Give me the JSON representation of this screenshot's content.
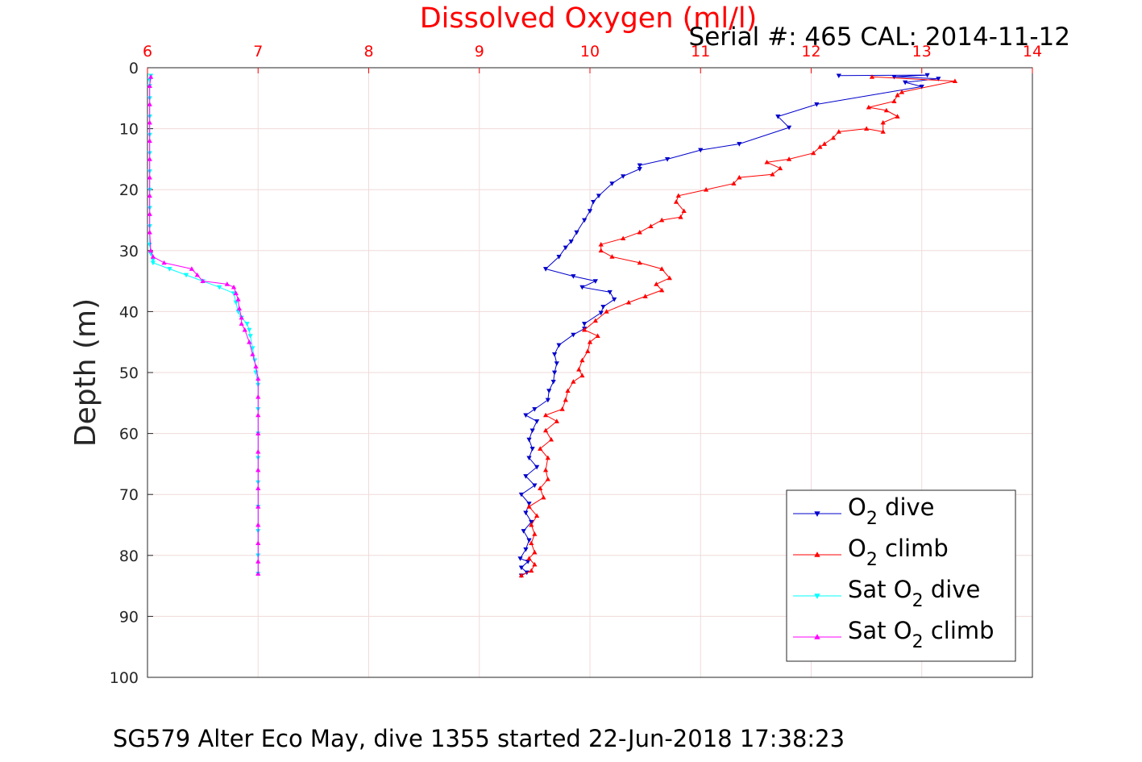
{
  "chart_data": {
    "type": "line",
    "title": "Dissolved Oxygen (ml/l)",
    "subtitle": "Serial #: 465  CAL: 2014-11-12",
    "footer": "SG579 Alter Eco May, dive 1355 started 22-Jun-2018 17:38:23",
    "xlabel": "",
    "ylabel": "Depth (m)",
    "xlim": [
      6,
      14
    ],
    "ylim": [
      0,
      100
    ],
    "y_reversed": true,
    "x_axis_position": "top",
    "grid": true,
    "legend_position": "bottom-right",
    "x_ticks": [
      6,
      7,
      8,
      9,
      10,
      11,
      12,
      13,
      14
    ],
    "y_ticks": [
      0,
      10,
      20,
      30,
      40,
      50,
      60,
      70,
      80,
      90,
      100
    ],
    "colors": {
      "title": "#ff0000",
      "x_ticks": "#ff0000",
      "grid": "#f0dada"
    },
    "series": [
      {
        "name_parts": [
          "O",
          "2",
          " dive"
        ],
        "color": "#0000cc",
        "marker": "triangle-down",
        "points": [
          [
            12.25,
            1.3
          ],
          [
            13.05,
            1.2
          ],
          [
            12.75,
            1.5
          ],
          [
            13.15,
            1.8
          ],
          [
            12.85,
            2.4
          ],
          [
            13.0,
            3.1
          ],
          [
            12.05,
            6.0
          ],
          [
            11.7,
            8.0
          ],
          [
            11.8,
            9.8
          ],
          [
            11.35,
            12.5
          ],
          [
            11.0,
            13.5
          ],
          [
            10.7,
            15.0
          ],
          [
            10.45,
            16.0
          ],
          [
            10.45,
            16.6
          ],
          [
            10.3,
            17.8
          ],
          [
            10.2,
            19.0
          ],
          [
            10.08,
            21.0
          ],
          [
            10.03,
            22.0
          ],
          [
            10.0,
            23.5
          ],
          [
            9.95,
            25.0
          ],
          [
            9.88,
            27.0
          ],
          [
            9.83,
            28.5
          ],
          [
            9.78,
            29.5
          ],
          [
            9.72,
            31.0
          ],
          [
            9.6,
            33.0
          ],
          [
            9.85,
            34.2
          ],
          [
            10.05,
            35.0
          ],
          [
            9.93,
            36.0
          ],
          [
            10.18,
            36.8
          ],
          [
            10.22,
            38.0
          ],
          [
            10.12,
            39.2
          ],
          [
            10.1,
            40.2
          ],
          [
            9.95,
            42.0
          ],
          [
            9.95,
            42.8
          ],
          [
            9.85,
            43.8
          ],
          [
            9.72,
            45.5
          ],
          [
            9.68,
            47.0
          ],
          [
            9.7,
            48.5
          ],
          [
            9.68,
            50.0
          ],
          [
            9.67,
            51.5
          ],
          [
            9.63,
            53.0
          ],
          [
            9.62,
            54.5
          ],
          [
            9.5,
            56.0
          ],
          [
            9.42,
            57.0
          ],
          [
            9.52,
            58.0
          ],
          [
            9.48,
            59.5
          ],
          [
            9.45,
            61.0
          ],
          [
            9.48,
            62.5
          ],
          [
            9.45,
            64.0
          ],
          [
            9.52,
            65.5
          ],
          [
            9.42,
            67.0
          ],
          [
            9.5,
            68.5
          ],
          [
            9.38,
            70.0
          ],
          [
            9.45,
            71.5
          ],
          [
            9.42,
            73.0
          ],
          [
            9.47,
            74.5
          ],
          [
            9.4,
            76.0
          ],
          [
            9.45,
            77.5
          ],
          [
            9.42,
            79.0
          ],
          [
            9.37,
            80.5
          ],
          [
            9.44,
            81.0
          ],
          [
            9.38,
            82.0
          ],
          [
            9.43,
            82.8
          ],
          [
            9.38,
            83.3
          ]
        ]
      },
      {
        "name_parts": [
          "O",
          "2",
          " climb"
        ],
        "color": "#ff0000",
        "marker": "triangle-up",
        "points": [
          [
            9.38,
            83.3
          ],
          [
            9.47,
            82.5
          ],
          [
            9.5,
            81.5
          ],
          [
            9.45,
            80.5
          ],
          [
            9.5,
            79.5
          ],
          [
            9.47,
            78.0
          ],
          [
            9.5,
            76.5
          ],
          [
            9.47,
            75.0
          ],
          [
            9.52,
            73.5
          ],
          [
            9.45,
            72.0
          ],
          [
            9.58,
            70.5
          ],
          [
            9.55,
            69.0
          ],
          [
            9.62,
            67.5
          ],
          [
            9.6,
            66.0
          ],
          [
            9.62,
            64.0
          ],
          [
            9.55,
            62.5
          ],
          [
            9.65,
            61.0
          ],
          [
            9.6,
            59.5
          ],
          [
            9.7,
            58.0
          ],
          [
            9.6,
            57.0
          ],
          [
            9.75,
            56.0
          ],
          [
            9.78,
            54.5
          ],
          [
            9.8,
            53.0
          ],
          [
            9.85,
            51.5
          ],
          [
            9.93,
            50.5
          ],
          [
            9.9,
            49.5
          ],
          [
            9.93,
            48.0
          ],
          [
            9.98,
            46.5
          ],
          [
            10.0,
            45.0
          ],
          [
            10.07,
            44.0
          ],
          [
            9.95,
            43.0
          ],
          [
            10.05,
            41.5
          ],
          [
            10.15,
            40.0
          ],
          [
            10.35,
            38.5
          ],
          [
            10.5,
            37.5
          ],
          [
            10.65,
            36.5
          ],
          [
            10.6,
            35.5
          ],
          [
            10.72,
            34.5
          ],
          [
            10.65,
            33.0
          ],
          [
            10.45,
            32.0
          ],
          [
            10.2,
            31.0
          ],
          [
            10.1,
            30.0
          ],
          [
            10.1,
            29.0
          ],
          [
            10.3,
            28.0
          ],
          [
            10.45,
            27.0
          ],
          [
            10.55,
            26.0
          ],
          [
            10.65,
            25.0
          ],
          [
            10.82,
            24.5
          ],
          [
            10.85,
            23.5
          ],
          [
            10.78,
            22.0
          ],
          [
            10.8,
            21.0
          ],
          [
            11.05,
            20.0
          ],
          [
            11.3,
            19.0
          ],
          [
            11.35,
            18.0
          ],
          [
            11.65,
            17.5
          ],
          [
            11.72,
            16.5
          ],
          [
            11.6,
            15.5
          ],
          [
            11.8,
            15.0
          ],
          [
            12.02,
            14.0
          ],
          [
            12.08,
            13.0
          ],
          [
            12.12,
            12.5
          ],
          [
            12.2,
            11.5
          ],
          [
            12.25,
            10.5
          ],
          [
            12.5,
            10.0
          ],
          [
            12.65,
            10.5
          ],
          [
            12.65,
            9.0
          ],
          [
            12.78,
            8.0
          ],
          [
            12.68,
            7.0
          ],
          [
            12.52,
            6.5
          ],
          [
            12.75,
            5.5
          ],
          [
            12.78,
            4.5
          ],
          [
            12.82,
            4.0
          ],
          [
            13.3,
            2.2
          ],
          [
            12.55,
            1.5
          ]
        ]
      },
      {
        "name_parts": [
          "Sat O",
          "2",
          " dive"
        ],
        "color": "#00ffff",
        "marker": "triangle-down",
        "points": [
          [
            6.03,
            1.3
          ],
          [
            6.02,
            2.0
          ],
          [
            6.02,
            3.0
          ],
          [
            6.02,
            5.0
          ],
          [
            6.02,
            8.0
          ],
          [
            6.02,
            11.0
          ],
          [
            6.02,
            14.0
          ],
          [
            6.02,
            17.0
          ],
          [
            6.02,
            20.0
          ],
          [
            6.02,
            23.0
          ],
          [
            6.02,
            26.0
          ],
          [
            6.02,
            29.0
          ],
          [
            6.03,
            30.5
          ],
          [
            6.05,
            31.5
          ],
          [
            6.05,
            32.0
          ],
          [
            6.2,
            33.0
          ],
          [
            6.35,
            34.0
          ],
          [
            6.5,
            35.0
          ],
          [
            6.65,
            36.0
          ],
          [
            6.78,
            37.0
          ],
          [
            6.8,
            38.5
          ],
          [
            6.82,
            40.0
          ],
          [
            6.85,
            41.0
          ],
          [
            6.9,
            42.0
          ],
          [
            6.92,
            43.0
          ],
          [
            6.93,
            44.0
          ],
          [
            6.95,
            46.0
          ],
          [
            6.97,
            48.0
          ],
          [
            6.98,
            50.0
          ],
          [
            7.0,
            52.0
          ],
          [
            7.0,
            56.0
          ],
          [
            7.0,
            60.0
          ],
          [
            7.0,
            64.0
          ],
          [
            7.0,
            68.0
          ],
          [
            7.0,
            72.0
          ],
          [
            7.0,
            76.0
          ],
          [
            7.0,
            80.0
          ],
          [
            7.0,
            83.0
          ]
        ]
      },
      {
        "name_parts": [
          "Sat O",
          "2",
          " climb"
        ],
        "color": "#ff00ff",
        "marker": "triangle-up",
        "points": [
          [
            7.0,
            83.0
          ],
          [
            7.0,
            81.0
          ],
          [
            7.0,
            78.0
          ],
          [
            7.0,
            75.0
          ],
          [
            7.0,
            72.0
          ],
          [
            7.0,
            69.0
          ],
          [
            7.0,
            66.0
          ],
          [
            7.0,
            63.0
          ],
          [
            7.0,
            60.0
          ],
          [
            7.0,
            57.0
          ],
          [
            7.0,
            54.0
          ],
          [
            7.0,
            51.0
          ],
          [
            6.98,
            49.0
          ],
          [
            6.95,
            47.0
          ],
          [
            6.92,
            45.0
          ],
          [
            6.88,
            43.0
          ],
          [
            6.85,
            42.0
          ],
          [
            6.85,
            41.0
          ],
          [
            6.83,
            39.5
          ],
          [
            6.82,
            38.0
          ],
          [
            6.8,
            37.0
          ],
          [
            6.78,
            36.0
          ],
          [
            6.72,
            35.5
          ],
          [
            6.5,
            35.0
          ],
          [
            6.45,
            34.0
          ],
          [
            6.4,
            33.0
          ],
          [
            6.15,
            32.0
          ],
          [
            6.05,
            31.0
          ],
          [
            6.03,
            30.0
          ],
          [
            6.02,
            27.0
          ],
          [
            6.02,
            24.0
          ],
          [
            6.02,
            21.0
          ],
          [
            6.02,
            18.0
          ],
          [
            6.02,
            15.0
          ],
          [
            6.02,
            12.0
          ],
          [
            6.02,
            9.0
          ],
          [
            6.02,
            6.0
          ],
          [
            6.02,
            3.0
          ],
          [
            6.03,
            1.5
          ]
        ]
      }
    ]
  }
}
